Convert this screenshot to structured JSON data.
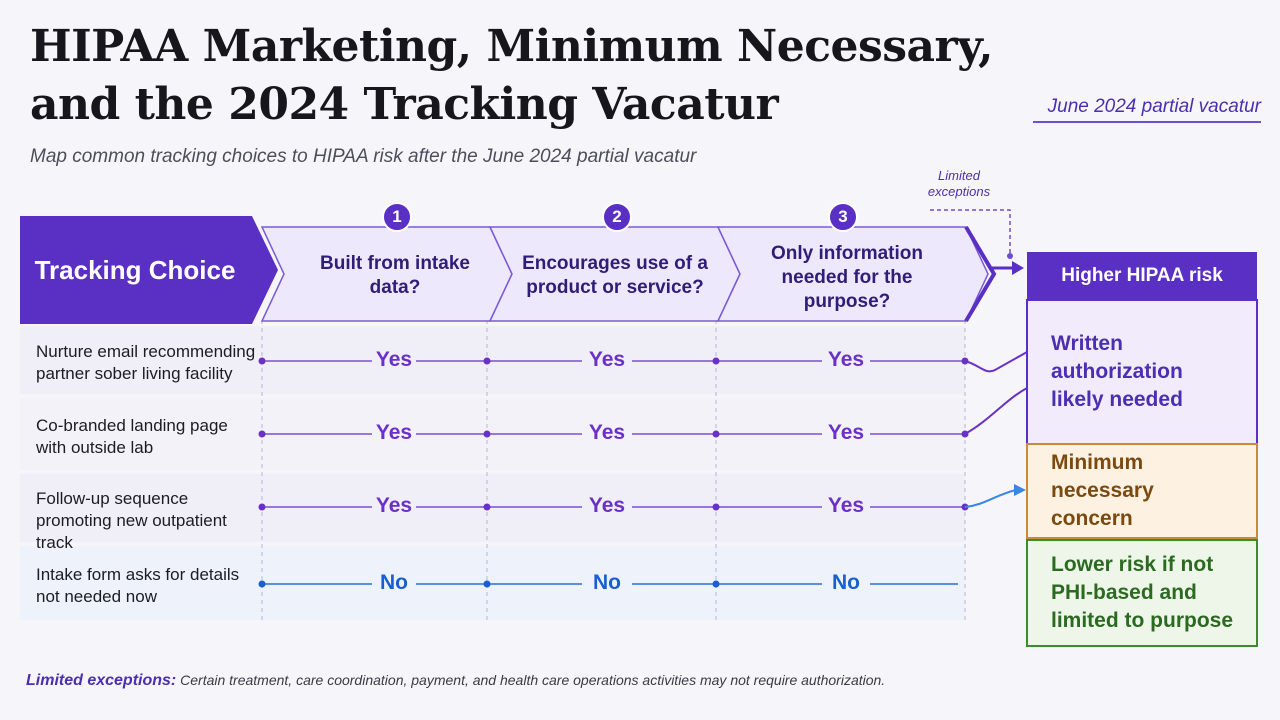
{
  "header": {
    "title_line1": "HIPAA Marketing, Minimum Necessary,",
    "title_line2": "and the 2024 Tracking Vacatur",
    "badge": "June 2024 partial vacatur",
    "subtitle": "Map common tracking choices to HIPAA risk after the June 2024 partial vacatur"
  },
  "exceptions_callout": "Limited exceptions",
  "table": {
    "head_label": "Tracking Choice",
    "columns": [
      {
        "number": "1",
        "label": "Built from intake data?"
      },
      {
        "number": "2",
        "label": "Encourages use of a product or service?"
      },
      {
        "number": "3",
        "label": "Only information needed for the purpose?"
      }
    ],
    "rows": [
      {
        "label": "Nurture email recommending partner sober living facility",
        "answers": [
          "Yes",
          "Yes",
          "Yes"
        ]
      },
      {
        "label": "Co-branded landing page with outside lab",
        "answers": [
          "Yes",
          "Yes",
          "Yes"
        ]
      },
      {
        "label": "Follow-up sequence promoting new outpatient track",
        "answers": [
          "Yes",
          "Yes",
          "Yes"
        ]
      },
      {
        "label": "Intake form asks for details not needed now",
        "answers": [
          "No",
          "No",
          "No"
        ]
      }
    ]
  },
  "risk": {
    "header": "Higher HIPAA risk",
    "boxes": [
      {
        "label": "Written authorization likely needed",
        "color": "#4b2fb0"
      },
      {
        "label": "Minimum necessary concern",
        "color": "#7a4a10"
      },
      {
        "label": "Lower risk if not PHI-based and limited to purpose",
        "color": "#2c6a22"
      }
    ]
  },
  "footer": {
    "label": "Limited exceptions:",
    "text": "Certain treatment, care coordination, payment, and health care operations activities may not require authorization."
  },
  "colors": {
    "purple": "#5a2fc4",
    "yes_text": "#6a30c8",
    "no_text": "#1a5fd0",
    "orange_border": "#c98a3a",
    "green_border": "#3f8a30"
  }
}
